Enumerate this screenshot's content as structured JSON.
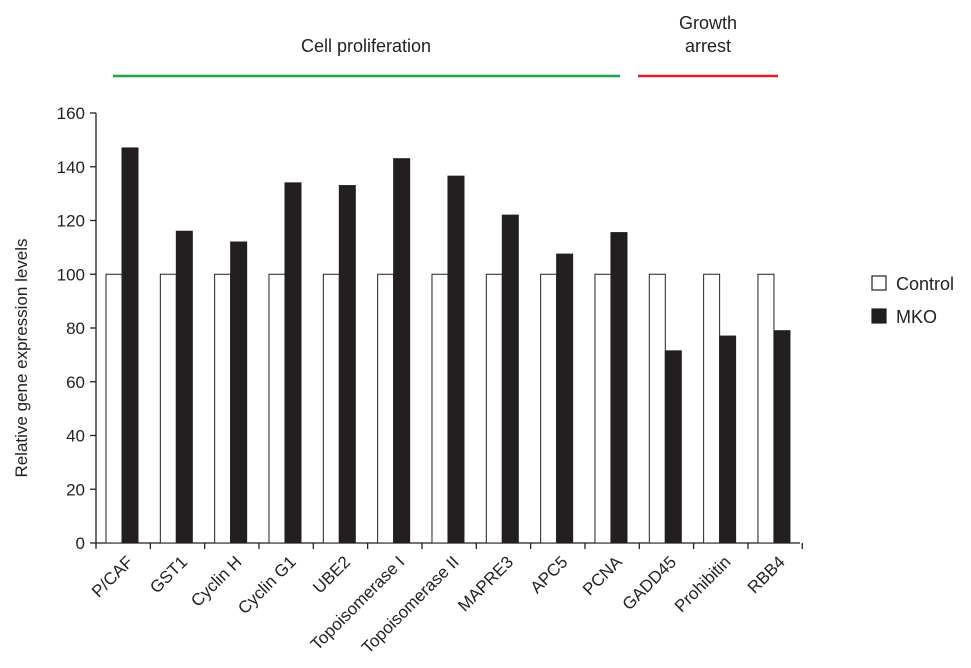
{
  "chart_data": {
    "type": "bar",
    "categories": [
      "P/CAF",
      "GST1",
      "Cyclin H",
      "Cyclin G1",
      "UBE2",
      "Topoisomerase I",
      "Topoisomerase II",
      "MAPRE3",
      "APC5",
      "PCNA",
      "GADD45",
      "Prohibitin",
      "RBB4"
    ],
    "series": [
      {
        "name": "Control",
        "values": [
          100,
          100,
          100,
          100,
          100,
          100,
          100,
          100,
          100,
          100,
          100,
          100,
          100
        ],
        "color": "#ffffff"
      },
      {
        "name": "MKO",
        "values": [
          147,
          116,
          112,
          134,
          133,
          143,
          136.5,
          122,
          107.5,
          115.5,
          71.5,
          77,
          79
        ],
        "color": "#231f20"
      }
    ],
    "ylabel": "Relative gene expression levels",
    "xlabel": "",
    "ylim": [
      0,
      160
    ],
    "yticks": [
      0,
      20,
      40,
      60,
      80,
      100,
      120,
      140,
      160
    ],
    "grid": false,
    "legend_position": "right",
    "groups": [
      {
        "label": "Cell proliferation",
        "start_index": 0,
        "end_index": 9,
        "color": "#1fa34a"
      },
      {
        "label_lines": [
          "Growth",
          "arrest"
        ],
        "start_index": 10,
        "end_index": 12,
        "color": "#e31e24"
      }
    ]
  }
}
